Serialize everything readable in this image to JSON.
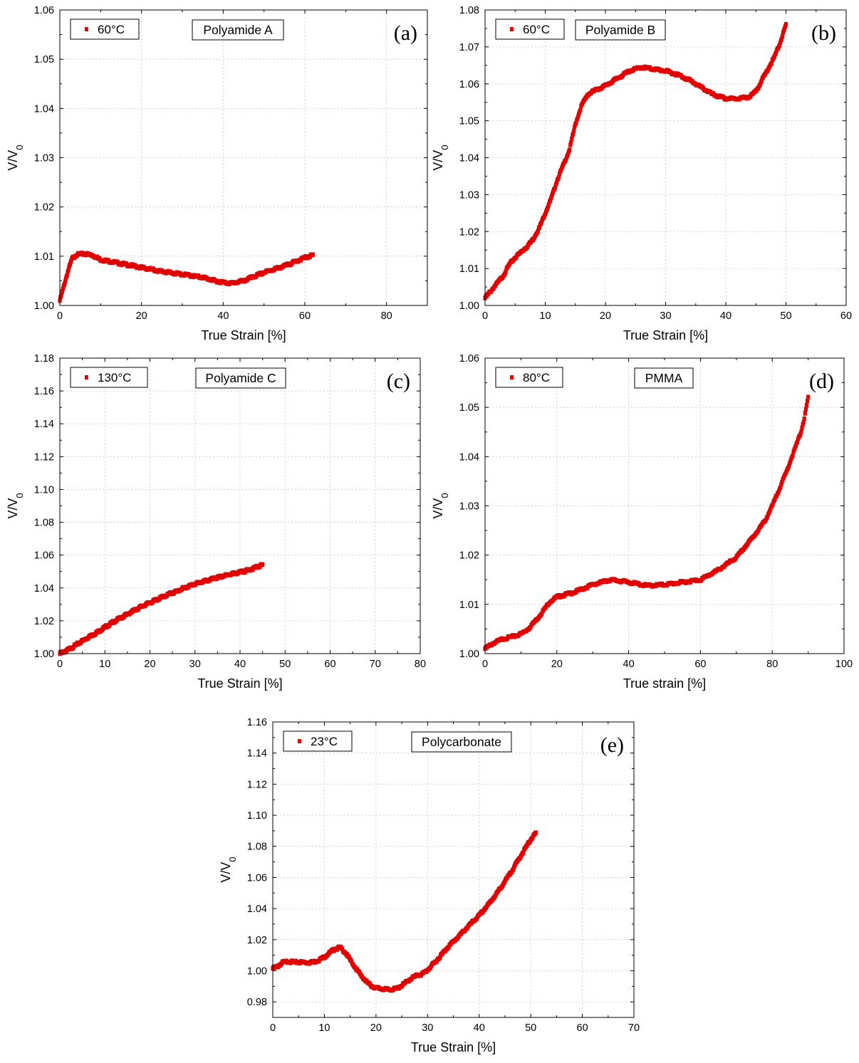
{
  "chart_data": [
    {
      "type": "scatter",
      "panel_label": "(a)",
      "legend": "60°C",
      "note": "Polyamide A",
      "xlabel": "True Strain [%]",
      "ylabel": "V/V0",
      "xlim": [
        0,
        90
      ],
      "ylim": [
        1.0,
        1.06
      ],
      "xticks": [
        0,
        20,
        40,
        60,
        80
      ],
      "xtick_labels": [
        "0",
        "20",
        "40",
        "60",
        "80"
      ],
      "yticks": [
        1.0,
        1.01,
        1.02,
        1.03,
        1.04,
        1.05,
        1.06
      ],
      "ytick_labels": [
        "1.00",
        "1.01",
        "1.02",
        "1.03",
        "1.04",
        "1.05",
        "1.06"
      ],
      "grid": true,
      "legend_position": "top-left",
      "color": "#e00000",
      "series": [
        {
          "x": [
            0,
            1,
            2,
            3,
            4,
            6,
            8,
            10,
            15,
            20,
            25,
            30,
            35,
            38,
            40,
            42,
            45,
            48,
            50,
            55,
            60,
            62
          ],
          "y": [
            1.001,
            1.004,
            1.007,
            1.0095,
            1.0103,
            1.0105,
            1.0102,
            1.0093,
            1.0085,
            1.0077,
            1.0069,
            1.0063,
            1.0057,
            1.005,
            1.0047,
            1.0045,
            1.005,
            1.006,
            1.0067,
            1.008,
            1.0097,
            1.0102
          ]
        }
      ]
    },
    {
      "type": "scatter",
      "panel_label": "(b)",
      "legend": "60°C",
      "note": "Polyamide B",
      "xlabel": "True Strain [%]",
      "ylabel": "V/V0",
      "xlim": [
        0,
        60
      ],
      "ylim": [
        1.0,
        1.08
      ],
      "xticks": [
        0,
        10,
        20,
        30,
        40,
        50,
        60
      ],
      "xtick_labels": [
        "0",
        "10",
        "20",
        "30",
        "40",
        "50",
        "60"
      ],
      "yticks": [
        1.0,
        1.01,
        1.02,
        1.03,
        1.04,
        1.05,
        1.06,
        1.07,
        1.08
      ],
      "ytick_labels": [
        "1.00",
        "1.01",
        "1.02",
        "1.03",
        "1.04",
        "1.05",
        "1.06",
        "1.07",
        "1.08"
      ],
      "grid": true,
      "legend_position": "top-left",
      "color": "#e00000",
      "series": [
        {
          "x": [
            0,
            1,
            2,
            3,
            4,
            5,
            6,
            7,
            8,
            9,
            10,
            11,
            12,
            13,
            14,
            15,
            16,
            17,
            18,
            20,
            22,
            24,
            26,
            28,
            30,
            32,
            34,
            36,
            38,
            40,
            42,
            44,
            45,
            46,
            47,
            48,
            49,
            50
          ],
          "y": [
            1.002,
            1.004,
            1.006,
            1.008,
            1.011,
            1.013,
            1.0145,
            1.016,
            1.018,
            1.021,
            1.025,
            1.029,
            1.034,
            1.038,
            1.042,
            1.049,
            1.054,
            1.057,
            1.058,
            1.0595,
            1.0615,
            1.0635,
            1.0645,
            1.064,
            1.0635,
            1.0625,
            1.061,
            1.059,
            1.057,
            1.056,
            1.056,
            1.0565,
            1.058,
            1.061,
            1.064,
            1.067,
            1.071,
            1.076
          ]
        }
      ]
    },
    {
      "type": "scatter",
      "panel_label": "(c)",
      "legend": "130°C",
      "note": "Polyamide C",
      "xlabel": "True Strain [%]",
      "ylabel": "V/V0",
      "xlim": [
        0,
        80
      ],
      "ylim": [
        1.0,
        1.18
      ],
      "xticks": [
        0,
        10,
        20,
        30,
        40,
        50,
        60,
        70,
        80
      ],
      "xtick_labels": [
        "0",
        "10",
        "20",
        "30",
        "40",
        "50",
        "60",
        "70",
        "80"
      ],
      "yticks": [
        1.0,
        1.02,
        1.04,
        1.06,
        1.08,
        1.1,
        1.12,
        1.14,
        1.16,
        1.18
      ],
      "ytick_labels": [
        "1.00",
        "1.02",
        "1.04",
        "1.06",
        "1.08",
        "1.10",
        "1.12",
        "1.14",
        "1.16",
        "1.18"
      ],
      "grid": true,
      "legend_position": "top-left",
      "color": "#e00000",
      "series": [
        {
          "x": [
            0,
            2,
            4,
            6,
            8,
            10,
            12,
            14,
            16,
            18,
            20,
            22,
            24,
            26,
            28,
            30,
            32,
            34,
            36,
            38,
            40,
            42,
            44,
            45
          ],
          "y": [
            1.0,
            1.0025,
            1.006,
            1.0095,
            1.0125,
            1.016,
            1.0195,
            1.0225,
            1.0255,
            1.0285,
            1.031,
            1.0335,
            1.036,
            1.038,
            1.0405,
            1.0425,
            1.044,
            1.0455,
            1.047,
            1.0485,
            1.0495,
            1.051,
            1.053,
            1.054
          ]
        }
      ]
    },
    {
      "type": "scatter",
      "panel_label": "(d)",
      "legend": "80°C",
      "note": "PMMA",
      "xlabel": "True strain [%]",
      "ylabel": "V/V0",
      "xlim": [
        0,
        100
      ],
      "ylim": [
        1.0,
        1.06
      ],
      "xticks": [
        0,
        20,
        40,
        60,
        80,
        100
      ],
      "xtick_labels": [
        "0",
        "20",
        "40",
        "60",
        "80",
        "100"
      ],
      "yticks": [
        1.0,
        1.01,
        1.02,
        1.03,
        1.04,
        1.05,
        1.06
      ],
      "ytick_labels": [
        "1.00",
        "1.01",
        "1.02",
        "1.03",
        "1.04",
        "1.05",
        "1.06"
      ],
      "grid": true,
      "legend_position": "top-left",
      "color": "#e00000",
      "series": [
        {
          "x": [
            0,
            2,
            5,
            8,
            10,
            12,
            15,
            18,
            20,
            25,
            30,
            35,
            40,
            45,
            50,
            55,
            60,
            65,
            70,
            75,
            78,
            80,
            82,
            84,
            86,
            88,
            89,
            90
          ],
          "y": [
            1.001,
            1.002,
            1.003,
            1.0035,
            1.004,
            1.005,
            1.0075,
            1.0105,
            1.0115,
            1.0125,
            1.014,
            1.015,
            1.0145,
            1.0138,
            1.014,
            1.0145,
            1.015,
            1.017,
            1.0195,
            1.024,
            1.027,
            1.03,
            1.0335,
            1.037,
            1.041,
            1.045,
            1.048,
            1.052
          ]
        }
      ]
    },
    {
      "type": "scatter",
      "panel_label": "(e)",
      "legend": "23°C",
      "note": "Polycarbonate",
      "xlabel": "True Strain [%]",
      "ylabel": "V/V0",
      "xlim": [
        0,
        70
      ],
      "ylim": [
        0.97,
        1.16
      ],
      "xticks": [
        0,
        10,
        20,
        30,
        40,
        50,
        60,
        70
      ],
      "xtick_labels": [
        "0",
        "10",
        "20",
        "30",
        "40",
        "50",
        "60",
        "70"
      ],
      "yticks": [
        0.98,
        1.0,
        1.02,
        1.04,
        1.06,
        1.08,
        1.1,
        1.12,
        1.14,
        1.16
      ],
      "ytick_labels": [
        "0.98",
        "1.00",
        "1.02",
        "1.04",
        "1.06",
        "1.08",
        "1.10",
        "1.12",
        "1.14",
        "1.16"
      ],
      "grid": true,
      "legend_position": "top-left",
      "color": "#e00000",
      "series": [
        {
          "x": [
            0,
            1,
            2,
            3,
            4,
            5,
            6,
            7,
            8,
            9,
            10,
            11,
            12,
            13,
            14,
            15,
            16,
            17,
            18,
            19,
            20,
            21,
            22,
            23,
            24,
            25,
            26,
            27,
            28,
            29,
            30,
            32,
            34,
            36,
            38,
            40,
            42,
            44,
            46,
            48,
            50,
            51
          ],
          "y": [
            1.0015,
            1.003,
            1.0055,
            1.006,
            1.0055,
            1.0055,
            1.0055,
            1.0052,
            1.0058,
            1.007,
            1.009,
            1.0115,
            1.014,
            1.015,
            1.012,
            1.007,
            1.002,
            0.9975,
            0.9935,
            0.9905,
            0.989,
            0.9885,
            0.988,
            0.988,
            0.9885,
            0.9905,
            0.993,
            0.9955,
            0.997,
            0.998,
            1.0005,
            1.0075,
            1.0155,
            1.022,
            1.029,
            1.0355,
            1.0435,
            1.0525,
            1.0625,
            1.0735,
            1.0845,
            1.0885
          ]
        }
      ]
    }
  ]
}
